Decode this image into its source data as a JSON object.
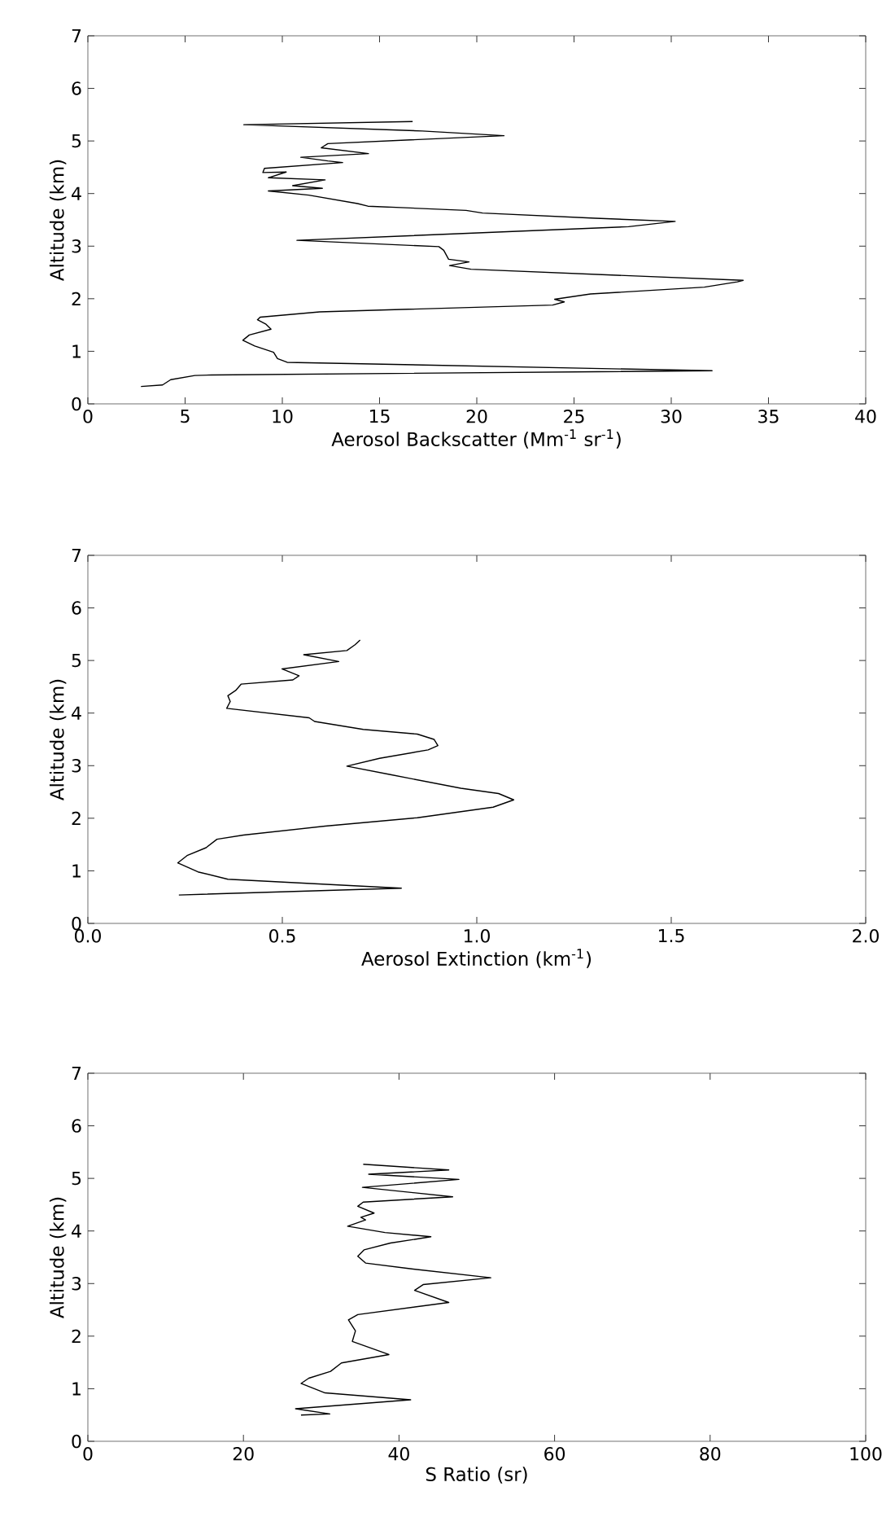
{
  "chart_data": [
    {
      "type": "line",
      "xlabel": "Aerosol Backscatter (Mm$^{-1}$ sr$^{-1}$)",
      "ylabel": "Altitude (km)",
      "xlim": [
        0,
        40
      ],
      "xticks": [
        0,
        5,
        10,
        15,
        20,
        25,
        30,
        35,
        40
      ],
      "ylim": [
        0,
        7
      ],
      "yticks": [
        0,
        1,
        2,
        3,
        4,
        5,
        6,
        7
      ],
      "series": [
        {
          "color": "#000000",
          "x": [
            2.73,
            3.84,
            4.26,
            5.5,
            6.35,
            32.1,
            10.25,
            9.75,
            9.55,
            8.58,
            7.97,
            8.3,
            9.42,
            9.14,
            8.72,
            8.86,
            11.92,
            23.9,
            24.5,
            24.0,
            25.85,
            31.7,
            33.4,
            33.7,
            19.7,
            18.6,
            19.6,
            18.55,
            18.3,
            18.05,
            10.75,
            27.8,
            30.2,
            26.1,
            20.3,
            19.45,
            14.4,
            13.87,
            11.36,
            9.28,
            12.06,
            10.53,
            12.2,
            9.28,
            10.2,
            9.0,
            9.08,
            13.1,
            12.34,
            10.95,
            14.43,
            12.0,
            12.34,
            21.4,
            17.2,
            8.02,
            16.7
          ],
          "values": [
            0.33,
            0.36,
            0.46,
            0.54,
            0.55,
            0.63,
            0.79,
            0.86,
            0.98,
            1.1,
            1.21,
            1.31,
            1.42,
            1.52,
            1.6,
            1.65,
            1.75,
            1.88,
            1.94,
            1.99,
            2.09,
            2.22,
            2.32,
            2.35,
            2.56,
            2.63,
            2.7,
            2.75,
            2.92,
            2.99,
            3.11,
            3.37,
            3.47,
            3.53,
            3.63,
            3.68,
            3.76,
            3.81,
            3.97,
            4.05,
            4.1,
            4.15,
            4.26,
            4.3,
            4.41,
            4.4,
            4.48,
            4.59,
            4.62,
            4.69,
            4.76,
            4.87,
            4.95,
            5.1,
            5.19,
            5.31,
            5.37
          ]
        }
      ]
    },
    {
      "type": "line",
      "xlabel": "Aerosol Extinction (km$^{-1}$)",
      "ylabel": "Altitude (km)",
      "xlim": [
        0,
        2
      ],
      "xticks": [
        {
          "value": 0,
          "label": "0.0"
        },
        {
          "value": 0.5,
          "label": "0.5"
        },
        {
          "value": 1,
          "label": "1.0"
        },
        {
          "value": 1.5,
          "label": "1.5"
        },
        {
          "value": 2,
          "label": "2.0"
        }
      ],
      "ylim": [
        0,
        7
      ],
      "yticks": [
        0,
        1,
        2,
        3,
        4,
        5,
        6,
        7
      ],
      "series": [
        {
          "color": "#000000",
          "x": [
            0.234,
            0.806,
            0.36,
            0.283,
            0.231,
            0.255,
            0.304,
            0.332,
            0.4,
            0.61,
            0.847,
            1.042,
            1.095,
            1.056,
            0.959,
            0.778,
            0.666,
            0.75,
            0.875,
            0.9,
            0.89,
            0.847,
            0.708,
            0.583,
            0.569,
            0.357,
            0.366,
            0.36,
            0.38,
            0.394,
            0.527,
            0.543,
            0.499,
            0.645,
            0.555,
            0.666,
            0.687,
            0.7
          ],
          "values": [
            0.54,
            0.67,
            0.84,
            0.98,
            1.15,
            1.29,
            1.44,
            1.6,
            1.68,
            1.85,
            2.01,
            2.21,
            2.35,
            2.47,
            2.57,
            2.83,
            2.99,
            3.14,
            3.3,
            3.38,
            3.5,
            3.6,
            3.69,
            3.84,
            3.91,
            4.09,
            4.22,
            4.33,
            4.43,
            4.55,
            4.63,
            4.71,
            4.84,
            4.98,
            5.11,
            5.19,
            5.3,
            5.39
          ]
        }
      ]
    },
    {
      "type": "line",
      "xlabel": "S Ratio (sr)",
      "ylabel": "Altitude (km)",
      "xlim": [
        0,
        100
      ],
      "xticks": [
        0,
        20,
        40,
        60,
        80,
        100
      ],
      "ylim": [
        0,
        7
      ],
      "yticks": [
        0,
        1,
        2,
        3,
        4,
        5,
        6,
        7
      ],
      "series": [
        {
          "color": "#000000",
          "x": [
            27.4,
            31.1,
            26.7,
            41.5,
            30.5,
            27.4,
            28.4,
            31.2,
            32.6,
            38.7,
            34.0,
            34.4,
            33.5,
            34.7,
            46.4,
            42.0,
            43.1,
            51.8,
            41.0,
            35.7,
            34.7,
            35.5,
            38.9,
            44.1,
            38.2,
            33.4,
            35.7,
            35.1,
            36.8,
            34.7,
            35.4,
            46.9,
            35.3,
            47.7,
            36.1,
            46.4,
            35.4
          ],
          "values": [
            0.5,
            0.52,
            0.62,
            0.79,
            0.92,
            1.1,
            1.2,
            1.33,
            1.49,
            1.65,
            1.9,
            2.1,
            2.31,
            2.41,
            2.64,
            2.87,
            2.98,
            3.11,
            3.29,
            3.39,
            3.52,
            3.64,
            3.77,
            3.89,
            3.97,
            4.09,
            4.21,
            4.26,
            4.34,
            4.47,
            4.55,
            4.65,
            4.83,
            4.98,
            5.08,
            5.16,
            5.27
          ]
        }
      ]
    }
  ]
}
